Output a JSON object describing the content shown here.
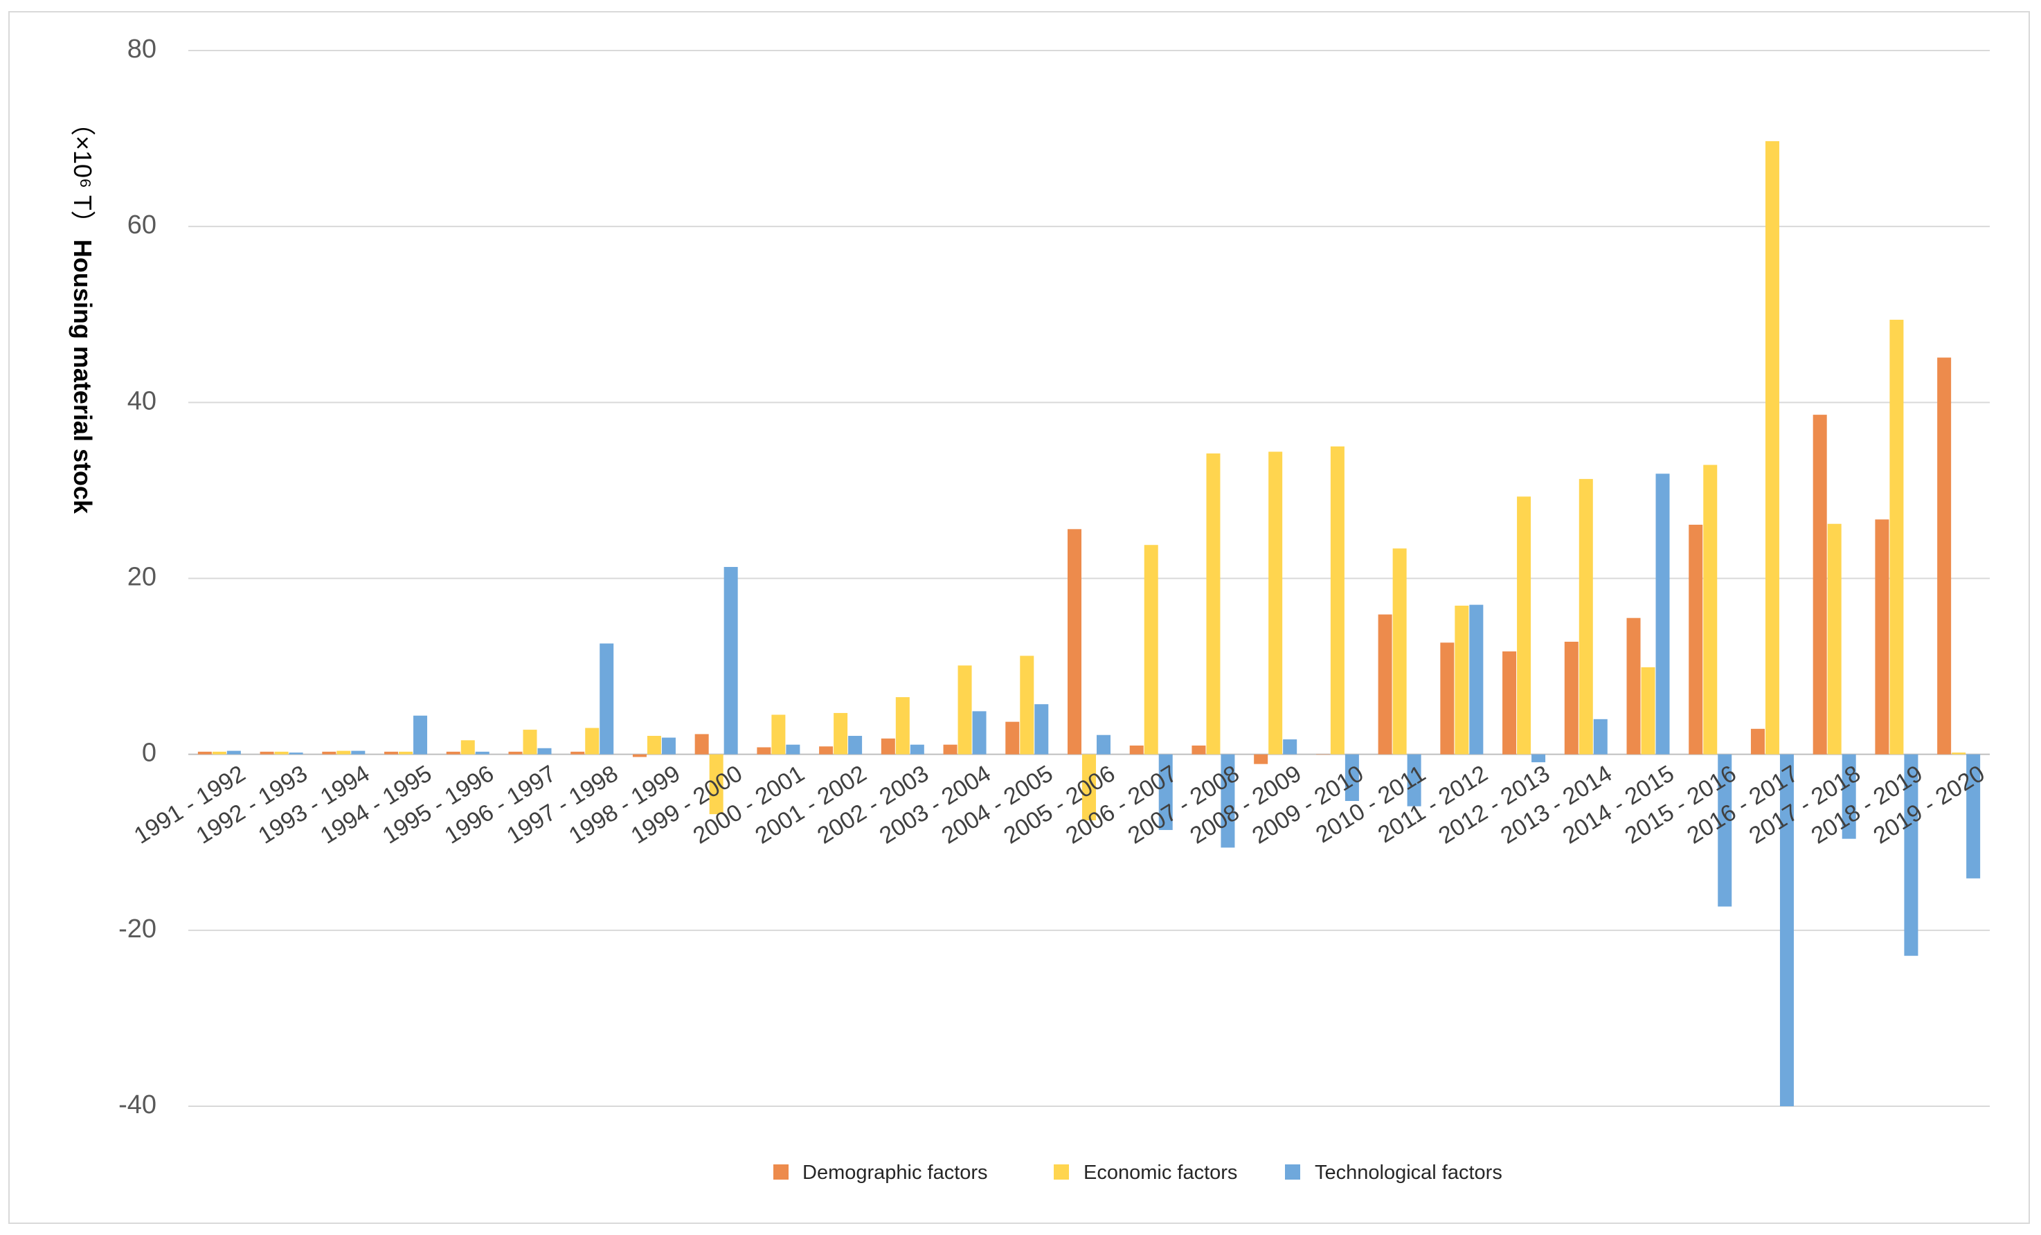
{
  "chart_data": {
    "type": "bar",
    "title": "",
    "xlabel": "",
    "ylabel": "Housing material stock",
    "ylabel_unit": "（×10⁶ T）",
    "ylim": [
      -40,
      80
    ],
    "yticks": [
      -40,
      -20,
      0,
      20,
      40,
      60,
      80
    ],
    "grid": true,
    "legend_position": "bottom",
    "categories": [
      "1991 - 1992",
      "1992 - 1993",
      "1993 - 1994",
      "1994 - 1995",
      "1995 - 1996",
      "1996 - 1997",
      "1997 - 1998",
      "1998 - 1999",
      "1999 - 2000",
      "2000 - 2001",
      "2001 - 2002",
      "2002 - 2003",
      "2003 - 2004",
      "2004 - 2005",
      "2005 - 2006",
      "2006 - 2007",
      "2007 - 2008",
      "2008 - 2009",
      "2009 - 2010",
      "2010 - 2011",
      "2011 - 2012",
      "2012 - 2013",
      "2013 - 2014",
      "2014 - 2015",
      "2015 - 2016",
      "2016 - 2017",
      "2017 - 2018",
      "2018 - 2019",
      "2019 - 2020"
    ],
    "series": [
      {
        "name": "Demographic factors",
        "color": "#ED8B4C",
        "values": [
          0.3,
          0.3,
          0.3,
          0.3,
          0.3,
          0.3,
          0.3,
          -0.3,
          2.3,
          0.8,
          0.9,
          1.8,
          1.1,
          3.7,
          25.6,
          1.0,
          1.0,
          -1.1,
          0.0,
          15.9,
          12.7,
          11.7,
          12.8,
          15.5,
          26.1,
          2.9,
          38.6,
          26.7,
          45.1
        ]
      },
      {
        "name": "Economic factors",
        "color": "#FFD54F",
        "values": [
          0.3,
          0.3,
          0.4,
          0.3,
          1.6,
          2.8,
          3.0,
          2.1,
          -6.8,
          4.5,
          4.7,
          6.5,
          10.1,
          11.2,
          -7.5,
          23.8,
          34.2,
          34.4,
          35.0,
          23.4,
          16.9,
          29.3,
          31.3,
          9.9,
          32.9,
          69.7,
          26.2,
          49.4,
          0.2
        ]
      },
      {
        "name": "Technological factors",
        "color": "#6FA8DC",
        "values": [
          0.4,
          0.2,
          0.4,
          4.4,
          0.3,
          0.7,
          12.6,
          1.9,
          21.3,
          1.1,
          2.1,
          1.1,
          4.9,
          5.7,
          2.2,
          -8.6,
          -10.6,
          1.7,
          -5.3,
          -5.9,
          17.0,
          -0.9,
          4.0,
          31.9,
          -17.3,
          -40.0,
          -9.6,
          -22.9,
          -14.1
        ]
      }
    ]
  }
}
